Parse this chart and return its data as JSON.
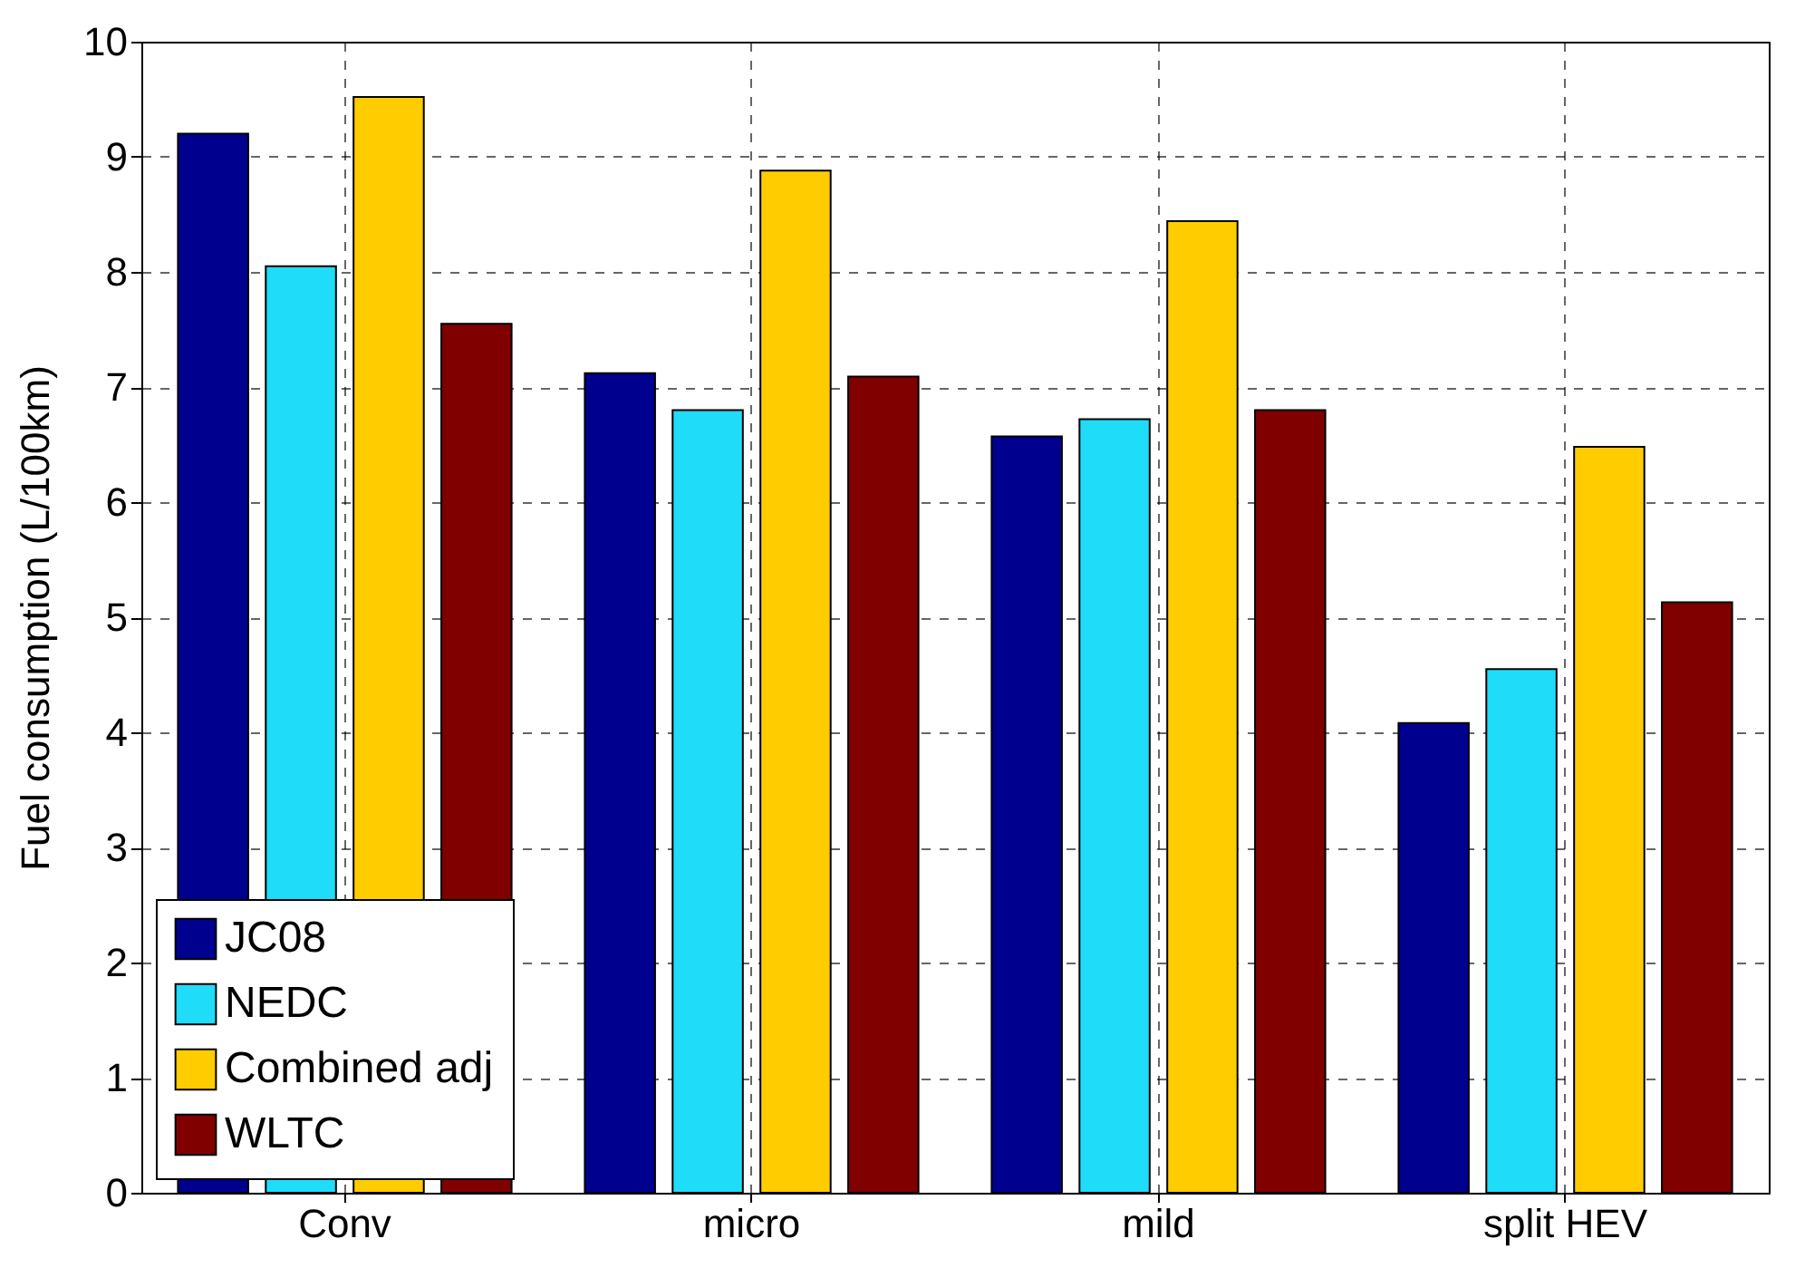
{
  "chart_data": {
    "type": "bar",
    "ylabel": "Fuel consumption (L/100km)",
    "categories": [
      "Conv",
      "micro",
      "mild",
      "split HEV"
    ],
    "series": [
      {
        "name": "JC08",
        "color": "#00008f",
        "values": [
          9.2,
          7.12,
          6.57,
          4.08
        ]
      },
      {
        "name": "NEDC",
        "color": "#1fdcf8",
        "values": [
          8.05,
          6.8,
          6.72,
          4.55
        ]
      },
      {
        "name": "Combined adj",
        "color": "#ffcc00",
        "values": [
          9.52,
          8.88,
          8.44,
          6.48
        ]
      },
      {
        "name": "WLTC",
        "color": "#800000",
        "values": [
          7.55,
          7.09,
          6.8,
          5.13
        ]
      }
    ],
    "ylim": [
      0,
      10
    ],
    "yticks": [
      0,
      1,
      2,
      3,
      4,
      5,
      6,
      7,
      8,
      9,
      10
    ],
    "grid": true,
    "legend": "bottom left"
  }
}
